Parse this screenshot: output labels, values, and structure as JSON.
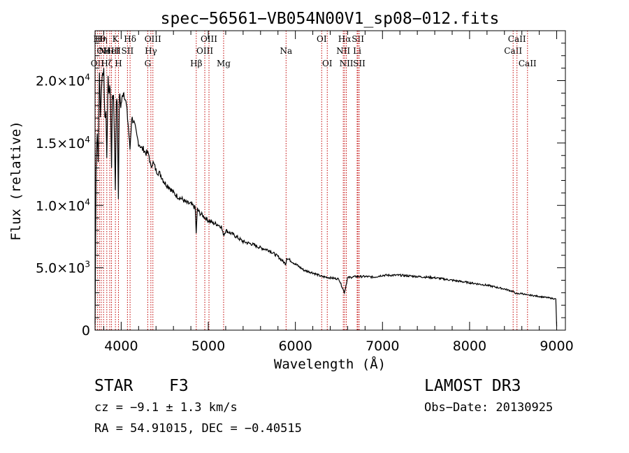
{
  "chart_data": {
    "type": "line",
    "title": "spec−56561−VB054N00V1_sp08−012.fits",
    "xlabel": "Wavelength (Å)",
    "ylabel": "Flux (relative)",
    "xlim": [
      3700,
      9100
    ],
    "ylim": [
      0,
      24000
    ],
    "xticks": [
      {
        "value": 4000,
        "label": "4000"
      },
      {
        "value": 5000,
        "label": "5000"
      },
      {
        "value": 6000,
        "label": "6000"
      },
      {
        "value": 7000,
        "label": "7000"
      },
      {
        "value": 8000,
        "label": "8000"
      },
      {
        "value": 9000,
        "label": "9000"
      }
    ],
    "yticks": [
      {
        "value": 0,
        "mant": "0",
        "exp": ""
      },
      {
        "value": 5000,
        "mant": "5.0×10",
        "exp": "3"
      },
      {
        "value": 10000,
        "mant": "1.0×10",
        "exp": "4"
      },
      {
        "value": 15000,
        "mant": "1.5×10",
        "exp": "4"
      },
      {
        "value": 20000,
        "mant": "2.0×10",
        "exp": "4"
      }
    ],
    "series": [
      {
        "name": "flux",
        "x": [
          3700,
          3712,
          3725,
          3737,
          3750,
          3762,
          3775,
          3787,
          3800,
          3812,
          3825,
          3835,
          3850,
          3862,
          3875,
          3889,
          3900,
          3912,
          3925,
          3933,
          3945,
          3955,
          3968,
          3980,
          3995,
          4010,
          4025,
          4040,
          4060,
          4080,
          4101,
          4120,
          4140,
          4160,
          4180,
          4200,
          4220,
          4240,
          4260,
          4280,
          4300,
          4320,
          4340,
          4360,
          4380,
          4400,
          4450,
          4500,
          4550,
          4600,
          4650,
          4700,
          4750,
          4800,
          4850,
          4861,
          4875,
          4900,
          4950,
          5000,
          5050,
          5100,
          5150,
          5167,
          5183,
          5200,
          5300,
          5400,
          5500,
          5600,
          5700,
          5800,
          5890,
          5900,
          6000,
          6100,
          6200,
          6300,
          6400,
          6500,
          6563,
          6600,
          6700,
          6800,
          6900,
          7000,
          7200,
          7400,
          7600,
          7800,
          8000,
          8200,
          8400,
          8498,
          8542,
          8600,
          8662,
          8700,
          8800,
          8900,
          8990,
          9000
        ],
        "y": [
          500,
          13000,
          16000,
          13500,
          21000,
          17000,
          19500,
          20500,
          21000,
          17000,
          17500,
          14000,
          20000,
          19000,
          19500,
          13000,
          19000,
          18500,
          15000,
          11200,
          18500,
          18200,
          10700,
          19000,
          18000,
          18500,
          19200,
          18800,
          18000,
          16500,
          14500,
          17000,
          16800,
          16200,
          15500,
          15000,
          14800,
          14500,
          14500,
          14200,
          14200,
          14000,
          13000,
          13500,
          13200,
          12800,
          12500,
          11800,
          11500,
          11000,
          10700,
          10500,
          10200,
          10100,
          9800,
          7800,
          9700,
          9400,
          9100,
          8800,
          8600,
          8500,
          8300,
          7800,
          7700,
          8000,
          7600,
          7100,
          6900,
          6600,
          6400,
          5900,
          5300,
          5800,
          5300,
          4800,
          4600,
          4300,
          4200,
          4100,
          3000,
          4200,
          4300,
          4300,
          4250,
          4400,
          4400,
          4300,
          4200,
          4000,
          3800,
          3600,
          3300,
          3100,
          2900,
          2950,
          2800,
          2800,
          2700,
          2600,
          2500,
          300
        ]
      }
    ],
    "lines": [
      {
        "wave": 3704,
        "label": "",
        "row": 0
      },
      {
        "wave": 3727,
        "label": "OII",
        "row": 2
      },
      {
        "wave": 3750,
        "label": "Hθ",
        "row": 0
      },
      {
        "wave": 3771,
        "label": "Hη",
        "row": 0
      },
      {
        "wave": 3798,
        "label": "OII",
        "row": 1
      },
      {
        "wave": 3835,
        "label": "Hζ",
        "row": 2
      },
      {
        "wave": 3869,
        "label": "NeIII",
        "row": 1
      },
      {
        "wave": 3889,
        "label": "HeI",
        "row": 1
      },
      {
        "wave": 3934,
        "label": "K",
        "row": 0
      },
      {
        "wave": 3969,
        "label": "H",
        "row": 2
      },
      {
        "wave": 4072,
        "label": "SII",
        "row": 1
      },
      {
        "wave": 4102,
        "label": "Hδ",
        "row": 0
      },
      {
        "wave": 4305,
        "label": "G",
        "row": 2
      },
      {
        "wave": 4341,
        "label": "Hγ",
        "row": 1
      },
      {
        "wave": 4364,
        "label": "OIII",
        "row": 0
      },
      {
        "wave": 4862,
        "label": "Hβ",
        "row": 2
      },
      {
        "wave": 4960,
        "label": "OIII",
        "row": 1
      },
      {
        "wave": 5008,
        "label": "OIII",
        "row": 0
      },
      {
        "wave": 5176,
        "label": "Mg",
        "row": 2
      },
      {
        "wave": 5893,
        "label": "Na",
        "row": 1
      },
      {
        "wave": 6302,
        "label": "OI",
        "row": 0
      },
      {
        "wave": 6366,
        "label": "OI",
        "row": 2
      },
      {
        "wave": 6550,
        "label": "NII",
        "row": 1
      },
      {
        "wave": 6565,
        "label": "Hα",
        "row": 0
      },
      {
        "wave": 6585,
        "label": "NII",
        "row": 2
      },
      {
        "wave": 6709,
        "label": "Li",
        "row": 1
      },
      {
        "wave": 6718,
        "label": "SII",
        "row": 0
      },
      {
        "wave": 6733,
        "label": "SII",
        "row": 2
      },
      {
        "wave": 8500,
        "label": "CaII",
        "row": 1
      },
      {
        "wave": 8544,
        "label": "CaII",
        "row": 0
      },
      {
        "wave": 8665,
        "label": "CaII",
        "row": 2
      }
    ]
  },
  "info": {
    "class": "STAR",
    "subclass": "F3",
    "survey": "LAMOST DR3",
    "cz": "cz = −9.1 ± 1.3 km/s",
    "obs_date": "Obs−Date: 20130925",
    "radec": "RA =  54.91015, DEC =  −0.40515"
  }
}
